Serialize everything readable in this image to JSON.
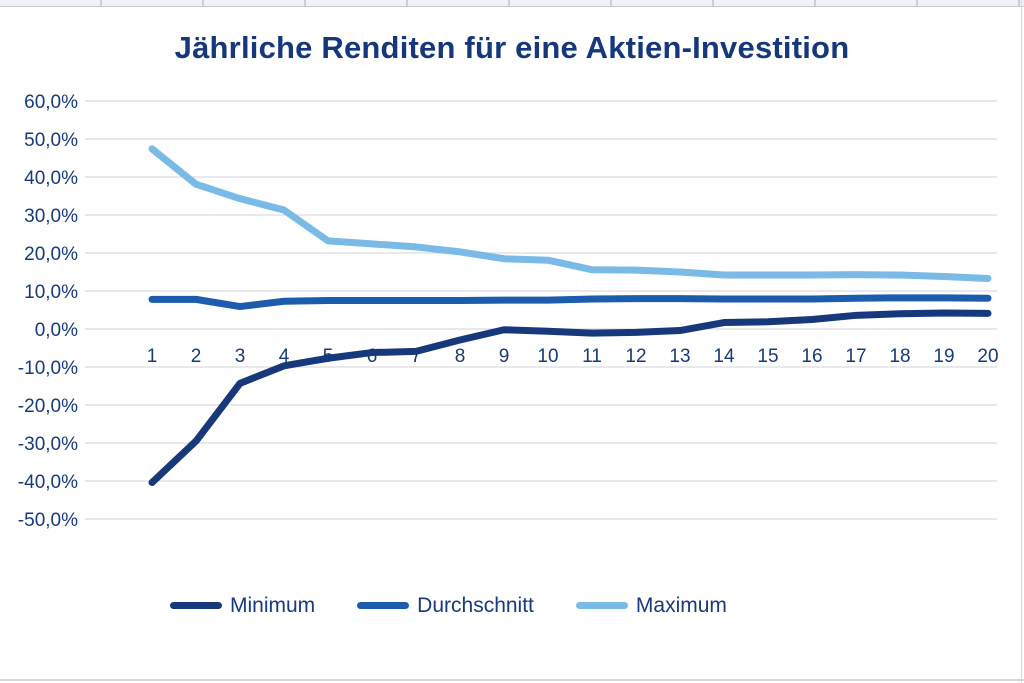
{
  "page_title": "Jährliche Renditen für eine Aktien-Investition",
  "colors": {
    "text_navy": "#17397E",
    "gridline": "#D9DCE2",
    "frame_gray": "#D4D7DE",
    "minimum_line": "#17397B",
    "durchschnitt_line": "#1C5CAD",
    "maximum_line": "#7ABAE6"
  },
  "chart_data": {
    "type": "line",
    "title": "Jährliche Renditen für eine Aktien-Investition",
    "xlabel": "",
    "ylabel": "",
    "x": [
      1,
      2,
      3,
      4,
      5,
      6,
      7,
      8,
      9,
      10,
      11,
      12,
      13,
      14,
      15,
      16,
      17,
      18,
      19,
      20
    ],
    "ylim": [
      -50,
      60
    ],
    "y_tick_step": 10,
    "y_tick_labels": [
      "60,0%",
      "50,0%",
      "40,0%",
      "30,0%",
      "20,0%",
      "10,0%",
      "0,0%",
      "-10,0%",
      "-20,0%",
      "-30,0%",
      "-40,0%",
      "-50,0%"
    ],
    "grid": true,
    "legend_position": "bottom",
    "series": [
      {
        "name": "Minimum",
        "color": "#17397B",
        "values": [
          -40.4,
          -29.5,
          -14.3,
          -9.7,
          -7.7,
          -6.2,
          -5.9,
          -2.9,
          -0.2,
          -0.6,
          -1.1,
          -0.9,
          -0.4,
          1.7,
          1.9,
          2.5,
          3.6,
          4.0,
          4.2,
          4.1
        ]
      },
      {
        "name": "Durchschnitt",
        "color": "#1C5CAD",
        "values": [
          7.8,
          7.8,
          5.9,
          7.3,
          7.5,
          7.5,
          7.5,
          7.5,
          7.6,
          7.6,
          7.9,
          8.0,
          8.0,
          7.9,
          7.9,
          7.9,
          8.1,
          8.2,
          8.2,
          8.1
        ]
      },
      {
        "name": "Maximum",
        "color": "#7ABAE6",
        "values": [
          47.4,
          38.1,
          34.3,
          31.3,
          23.2,
          22.4,
          21.6,
          20.3,
          18.5,
          18.1,
          15.6,
          15.5,
          15.0,
          14.2,
          14.2,
          14.2,
          14.3,
          14.2,
          13.8,
          13.3
        ]
      }
    ]
  }
}
